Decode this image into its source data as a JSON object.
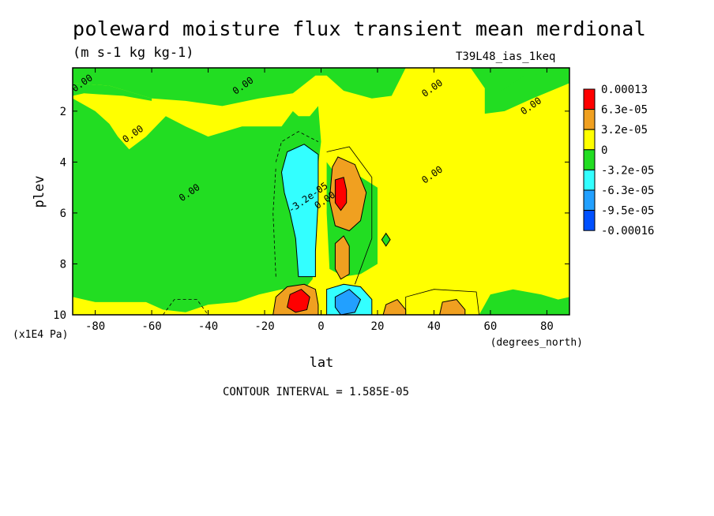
{
  "header": {
    "title": "poleward moisture flux transient mean merdional",
    "units": "(m s-1 kg kg-1)",
    "run": "T39L48_ias_1keq"
  },
  "footer": {
    "contour_interval": "CONTOUR INTERVAL = 1.585E-05"
  },
  "chart_data": {
    "type": "heatmap",
    "title": "poleward moisture flux transient mean merdional",
    "subtitle": "(m s-1 kg kg-1)",
    "run_label": "T39L48_ias_1keq",
    "xlabel": "lat",
    "x_units": "(degrees_north)",
    "ylabel": "plev",
    "y_units": "(x1E4 Pa)",
    "xlim": [
      -88,
      88
    ],
    "ylim": [
      10,
      0.3
    ],
    "x_ticks": [
      -80,
      -60,
      -40,
      -20,
      0,
      20,
      40,
      60,
      80
    ],
    "x_tick_labels": [
      "-80",
      "-60",
      "-40",
      "-20",
      "0",
      "20",
      "40",
      "60",
      "80"
    ],
    "y_ticks": [
      2,
      4,
      6,
      8,
      10
    ],
    "y_tick_labels": [
      "2",
      "4",
      "6",
      "8",
      "10"
    ],
    "contour_interval": 1.585e-05,
    "colorbar": {
      "labels": [
        "0.00013",
        "6.3e-05",
        "3.2e-05",
        "0",
        "-3.2e-05",
        "-6.3e-05",
        "-9.5e-05",
        "-0.00016"
      ],
      "colors": [
        "#ff0000",
        "#f0a020",
        "#ffff00",
        "#22dd22",
        "#33ffff",
        "#22a0ff",
        "#0050ff"
      ]
    },
    "contour_labels": [
      {
        "text": "0.00",
        "lat": -84,
        "plev": 1.0
      },
      {
        "text": "0.00",
        "lat": -27,
        "plev": 1.1
      },
      {
        "text": "0.00",
        "lat": 40,
        "plev": 1.2
      },
      {
        "text": "0.00",
        "lat": 75,
        "plev": 1.9
      },
      {
        "text": "0.00",
        "lat": -66,
        "plev": 3.0
      },
      {
        "text": "0.00",
        "lat": -46,
        "plev": 5.3
      },
      {
        "text": "0.00",
        "lat": 40,
        "plev": 4.6
      },
      {
        "text": "0.00",
        "lat": 2,
        "plev": 5.6
      },
      {
        "text": "-3.2e-05",
        "lat": -4,
        "plev": 5.5
      }
    ],
    "regions": [
      {
        "value_class": "0 to 3.2e-05",
        "desc": "background"
      },
      {
        "value_class": "-3.2e-05 to 0",
        "desc": "upper-level band"
      },
      {
        "value_class": "-3.2e-05 to 0",
        "desc": "southern hemisphere lower levels"
      },
      {
        "value_class": "-3.2e-05 to 0",
        "desc": "northern mid-levels 0-20N"
      },
      {
        "value_class": "-3.2e-05 to 0",
        "desc": "northern high latitudes 55-90N"
      },
      {
        "value_class": "-6.3e-05 to -3.2e-05",
        "desc": "southern tropics 2-7"
      },
      {
        "value_class": "3.2e-05 to 6.3e-05",
        "desc": "northern tropics 4-6"
      },
      {
        "value_class": "6.3e-05 to 0.00013",
        "desc": "northern tropics peak"
      },
      {
        "value_class": "3.2e-05 to 6.3e-05",
        "desc": "southern tropics near surface"
      },
      {
        "value_class": "6.3e-05 to 0.00013",
        "desc": "southern tropics near-surface peak"
      },
      {
        "value_class": "-6.3e-05 to -3.2e-05",
        "desc": "northern tropics near surface"
      },
      {
        "value_class": "-9.5e-05 to -6.3e-05",
        "desc": "northern tropics near-surface minimum"
      }
    ]
  }
}
